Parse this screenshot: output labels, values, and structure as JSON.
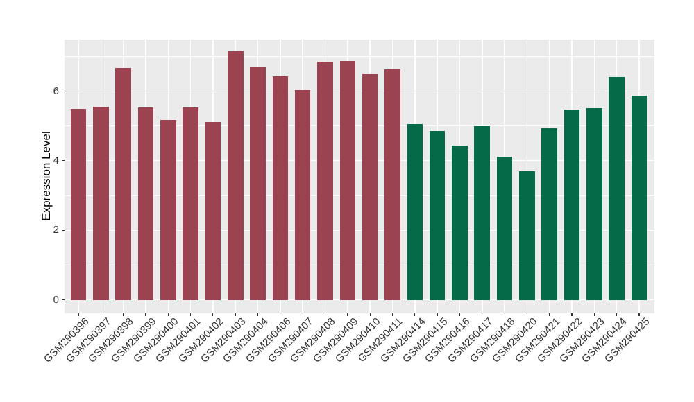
{
  "style": {
    "background": "#FFFFFF",
    "panel_background": "#EBEBEB",
    "grid_color": "#FFFFFF",
    "axis_text_color": "#333333",
    "axis_title_color": "#000000",
    "tick_mark_color": "#333333",
    "bar_color_group_left": "#9C4351",
    "bar_color_group_right": "#046A47"
  },
  "chart_data": {
    "type": "bar",
    "title": "",
    "xlabel": "",
    "ylabel": "Expression Level",
    "ylim": [
      0,
      7.5
    ],
    "yticks": [
      0,
      2,
      4,
      6
    ],
    "yticks_minor": [
      1,
      3,
      5,
      7
    ],
    "grid": "on",
    "legend": "none",
    "x_label_angle": 45,
    "categories": [
      "GSM290396",
      "GSM290397",
      "GSM290398",
      "GSM290399",
      "GSM290400",
      "GSM290401",
      "GSM290402",
      "GSM290403",
      "GSM290404",
      "GSM290406",
      "GSM290407",
      "GSM290408",
      "GSM290409",
      "GSM290410",
      "GSM290411",
      "GSM290414",
      "GSM290415",
      "GSM290416",
      "GSM290417",
      "GSM290418",
      "GSM290420",
      "GSM290421",
      "GSM290422",
      "GSM290423",
      "GSM290424",
      "GSM290425"
    ],
    "values": [
      5.5,
      5.55,
      6.67,
      5.53,
      5.18,
      5.53,
      5.12,
      7.14,
      6.7,
      6.42,
      6.02,
      6.84,
      6.86,
      6.48,
      6.63,
      5.06,
      4.85,
      4.44,
      5.0,
      4.12,
      3.69,
      4.94,
      5.47,
      5.52,
      6.41,
      5.88
    ],
    "bar_colors": [
      "#9C4351",
      "#9C4351",
      "#9C4351",
      "#9C4351",
      "#9C4351",
      "#9C4351",
      "#9C4351",
      "#9C4351",
      "#9C4351",
      "#9C4351",
      "#9C4351",
      "#9C4351",
      "#9C4351",
      "#9C4351",
      "#9C4351",
      "#046A47",
      "#046A47",
      "#046A47",
      "#046A47",
      "#046A47",
      "#046A47",
      "#046A47",
      "#046A47",
      "#046A47",
      "#046A47",
      "#046A47"
    ]
  }
}
